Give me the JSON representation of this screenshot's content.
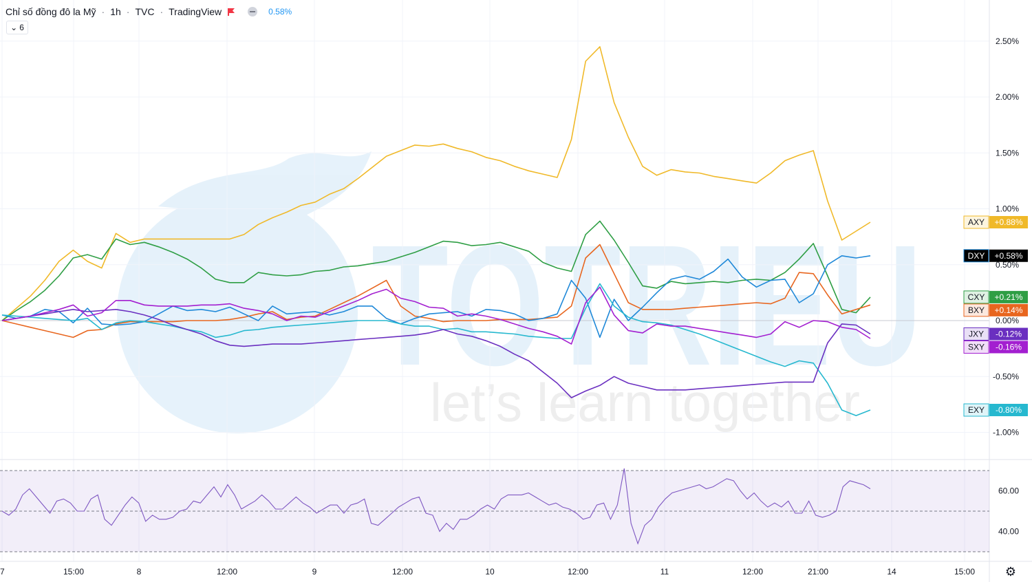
{
  "header": {
    "title": "Chỉ số đồng đô la Mỹ",
    "interval": "1h",
    "exchange": "TVC",
    "source": "TradingView",
    "change": "0.58%",
    "collapse_count": "6"
  },
  "watermark": {
    "brand": "TOTRIEU",
    "slogan": "let’s learn together"
  },
  "chart_data": [
    {
      "type": "line",
      "title": "",
      "x_ticks": [
        "7",
        "15:00",
        "8",
        "12:00",
        "9",
        "12:00",
        "10",
        "12:00",
        "11",
        "12:00",
        "21:00",
        "14",
        "15:00"
      ],
      "y_ticks": [
        "2.50%",
        "2.00%",
        "1.50%",
        "1.00%",
        "0.50%",
        "0.00%",
        "-0.50%",
        "-1.00%"
      ],
      "ylim": [
        -1.0,
        2.5
      ],
      "y_unit": "%",
      "series": [
        {
          "name": "AXY",
          "color": "#f0b929",
          "last": "+0.88%",
          "values": [
            0,
            0.11,
            0.22,
            0.36,
            0.53,
            0.63,
            0.53,
            0.47,
            0.78,
            0.7,
            0.73,
            0.73,
            0.73,
            0.73,
            0.73,
            0.73,
            0.73,
            0.77,
            0.86,
            0.92,
            0.97,
            1.03,
            1.06,
            1.13,
            1.18,
            1.27,
            1.37,
            1.47,
            1.52,
            1.57,
            1.56,
            1.58,
            1.54,
            1.51,
            1.46,
            1.43,
            1.38,
            1.34,
            1.31,
            1.28,
            1.62,
            2.32,
            2.45,
            1.95,
            1.64,
            1.38,
            1.3,
            1.35,
            1.33,
            1.32,
            1.29,
            1.27,
            1.25,
            1.23,
            1.32,
            1.43,
            1.48,
            1.52,
            1.07,
            0.72,
            0.8,
            0.88
          ]
        },
        {
          "name": "CXY",
          "color": "#2e9e44",
          "last": "+0.21%",
          "values": [
            0,
            0.09,
            0.17,
            0.27,
            0.4,
            0.56,
            0.59,
            0.55,
            0.73,
            0.68,
            0.7,
            0.66,
            0.61,
            0.55,
            0.47,
            0.37,
            0.34,
            0.34,
            0.43,
            0.41,
            0.4,
            0.41,
            0.44,
            0.45,
            0.48,
            0.49,
            0.51,
            0.53,
            0.57,
            0.61,
            0.66,
            0.71,
            0.7,
            0.67,
            0.68,
            0.7,
            0.66,
            0.62,
            0.52,
            0.47,
            0.44,
            0.77,
            0.89,
            0.72,
            0.52,
            0.31,
            0.29,
            0.35,
            0.33,
            0.34,
            0.35,
            0.34,
            0.36,
            0.37,
            0.36,
            0.43,
            0.55,
            0.69,
            0.4,
            0.1,
            0.07,
            0.21
          ]
        },
        {
          "name": "BXY",
          "color": "#e8661f",
          "last": "+0.14%",
          "values": [
            0,
            -0.03,
            -0.06,
            -0.09,
            -0.12,
            -0.15,
            -0.09,
            -0.08,
            -0.03,
            -0.01,
            -0.01,
            -0.01,
            -0.01,
            0.0,
            0.0,
            0.0,
            0.01,
            0.03,
            0.06,
            0.08,
            0.01,
            0.03,
            0.04,
            0.1,
            0.16,
            0.22,
            0.29,
            0.36,
            0.13,
            0.04,
            0.02,
            -0.01,
            0.0,
            0.0,
            0.0,
            0.01,
            0.01,
            0.01,
            0.02,
            0.03,
            0.13,
            0.56,
            0.68,
            0.42,
            0.16,
            0.1,
            0.1,
            0.1,
            0.11,
            0.12,
            0.13,
            0.14,
            0.15,
            0.16,
            0.15,
            0.2,
            0.43,
            0.42,
            0.23,
            0.06,
            0.1,
            0.14
          ]
        },
        {
          "name": "DXY",
          "color": "#1e88d8",
          "last": "+0.58%",
          "values": [
            0.05,
            0.02,
            0.04,
            0.1,
            0.08,
            -0.02,
            0.11,
            -0.03,
            -0.04,
            -0.03,
            -0.01,
            0.06,
            0.13,
            0.09,
            0.1,
            0.08,
            0.12,
            0.06,
            0.0,
            0.13,
            0.06,
            0.07,
            0.08,
            0.05,
            0.08,
            0.13,
            0.13,
            0.02,
            -0.03,
            0.02,
            0.06,
            0.07,
            0.08,
            0.04,
            0.1,
            0.09,
            0.06,
            0.0,
            0.02,
            0.06,
            0.36,
            0.2,
            -0.15,
            0.19,
            0.0,
            0.12,
            0.25,
            0.37,
            0.4,
            0.37,
            0.44,
            0.55,
            0.39,
            0.3,
            0.36,
            0.37,
            0.16,
            0.24,
            0.5,
            0.58,
            0.56,
            0.58
          ]
        },
        {
          "name": "EXY",
          "color": "#26b8cf",
          "last": "-0.80%",
          "values": [
            0.05,
            0.04,
            0.03,
            0.02,
            0.01,
            0.0,
            0.02,
            -0.08,
            -0.02,
            0.0,
            -0.01,
            -0.03,
            -0.05,
            -0.08,
            -0.1,
            -0.15,
            -0.13,
            -0.09,
            -0.08,
            -0.06,
            -0.05,
            -0.04,
            -0.03,
            -0.02,
            -0.01,
            0.0,
            0.0,
            0.0,
            -0.03,
            -0.05,
            -0.05,
            -0.08,
            -0.07,
            -0.1,
            -0.1,
            -0.11,
            -0.12,
            -0.14,
            -0.15,
            -0.16,
            -0.16,
            0.11,
            0.33,
            0.13,
            0.03,
            -0.01,
            -0.02,
            -0.04,
            -0.08,
            -0.12,
            -0.17,
            -0.22,
            -0.27,
            -0.32,
            -0.37,
            -0.41,
            -0.36,
            -0.38,
            -0.56,
            -0.8,
            -0.85,
            -0.8
          ]
        },
        {
          "name": "JXY",
          "color": "#6a2fc0",
          "last": "-0.12%",
          "values": [
            0,
            0.02,
            0.04,
            0.06,
            0.08,
            0.1,
            0.08,
            0.09,
            0.1,
            0.08,
            0.05,
            0.01,
            -0.04,
            -0.08,
            -0.12,
            -0.18,
            -0.22,
            -0.23,
            -0.22,
            -0.21,
            -0.21,
            -0.21,
            -0.2,
            -0.19,
            -0.18,
            -0.17,
            -0.16,
            -0.15,
            -0.14,
            -0.13,
            -0.11,
            -0.08,
            -0.12,
            -0.14,
            -0.18,
            -0.23,
            -0.3,
            -0.36,
            -0.46,
            -0.56,
            -0.69,
            -0.63,
            -0.58,
            -0.5,
            -0.56,
            -0.59,
            -0.62,
            -0.62,
            -0.62,
            -0.61,
            -0.6,
            -0.59,
            -0.58,
            -0.57,
            -0.56,
            -0.55,
            -0.55,
            -0.55,
            -0.2,
            -0.03,
            -0.04,
            -0.12
          ]
        },
        {
          "name": "SXY",
          "color": "#a31fd0",
          "last": "-0.16%",
          "values": [
            0,
            0.02,
            0.04,
            0.07,
            0.1,
            0.14,
            0.04,
            0.07,
            0.18,
            0.18,
            0.14,
            0.13,
            0.13,
            0.13,
            0.14,
            0.14,
            0.15,
            0.11,
            0.09,
            0.06,
            0.0,
            0.04,
            0.03,
            0.08,
            0.13,
            0.18,
            0.24,
            0.28,
            0.2,
            0.17,
            0.12,
            0.11,
            0.04,
            0.06,
            0.04,
            0.01,
            -0.03,
            -0.07,
            -0.1,
            -0.14,
            -0.21,
            0.16,
            0.3,
            0.05,
            -0.09,
            -0.11,
            -0.03,
            -0.05,
            -0.05,
            -0.07,
            -0.09,
            -0.11,
            -0.13,
            -0.15,
            -0.12,
            -0.01,
            -0.06,
            0.0,
            -0.01,
            -0.06,
            -0.08,
            -0.16
          ]
        }
      ]
    },
    {
      "type": "line",
      "title": "",
      "y_ticks": [
        "60.00",
        "40.00"
      ],
      "ylim": [
        30,
        72
      ],
      "bands": [
        70,
        50,
        30
      ],
      "series": [
        {
          "name": "",
          "color": "#7e57c2",
          "values": [
            50,
            48,
            51,
            58,
            61,
            57,
            53,
            49,
            55,
            56,
            54,
            50,
            50,
            56,
            58,
            46,
            43,
            48,
            53,
            57,
            54,
            45,
            48,
            46,
            46,
            47,
            50,
            51,
            55,
            54,
            58,
            62,
            57,
            63,
            58,
            51,
            53,
            55,
            58,
            55,
            51,
            51,
            54,
            57,
            54,
            52,
            49,
            51,
            53,
            53,
            49,
            53,
            54,
            56,
            44,
            43,
            46,
            49,
            52,
            54,
            56,
            57,
            49,
            48,
            40,
            44,
            41,
            46,
            46,
            48,
            51,
            53,
            51,
            56,
            58,
            58,
            58,
            59,
            57,
            55,
            53,
            54,
            52,
            51,
            49,
            46,
            47,
            53,
            54,
            46,
            53,
            71,
            44,
            34,
            43,
            46,
            52,
            56,
            59,
            60,
            61,
            62,
            63,
            61,
            62,
            64,
            66,
            65,
            60,
            56,
            59,
            55,
            52,
            54,
            52,
            55,
            49,
            49,
            55,
            48,
            47,
            48,
            50,
            62,
            65,
            64,
            63,
            61
          ]
        }
      ]
    }
  ]
}
